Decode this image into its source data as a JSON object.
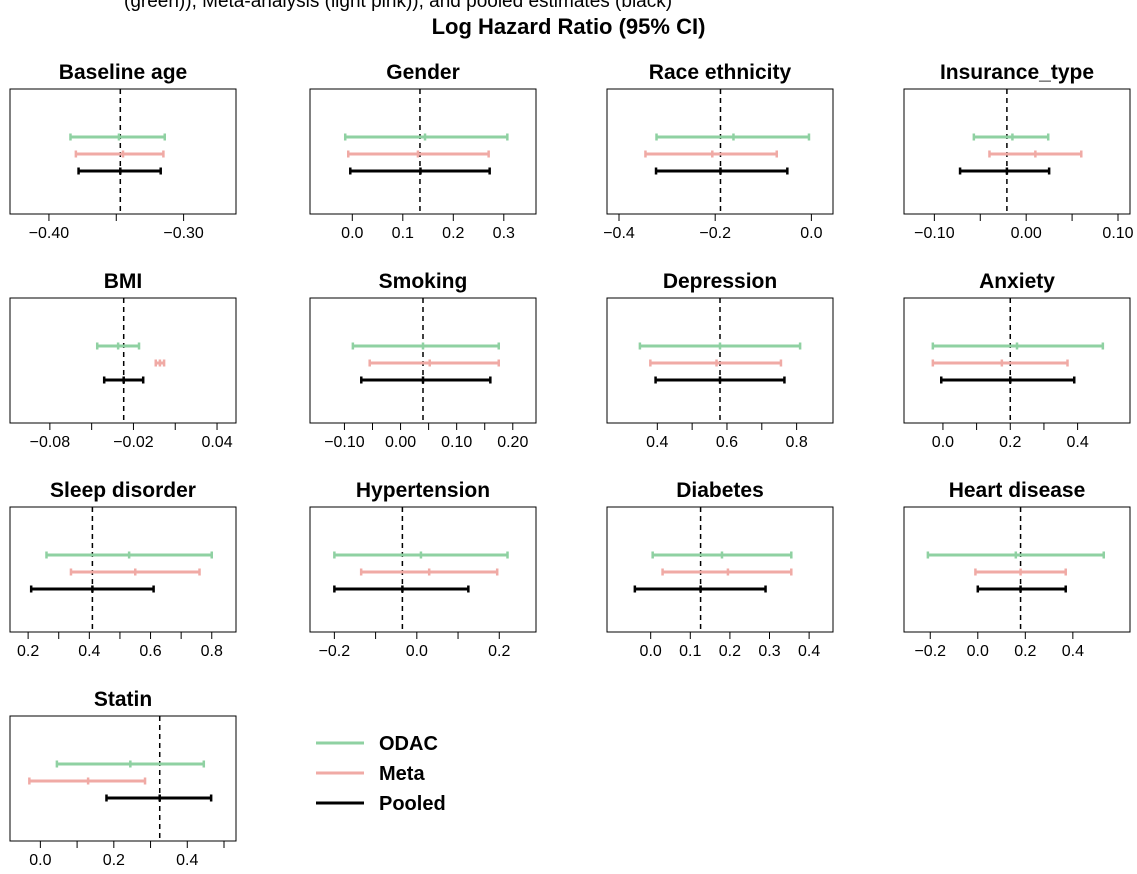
{
  "caption_fragment": "(green)), Meta-analysis (light pink)), and pooled estimates (black)",
  "figure_title": "Log Hazard Ratio (95% CI)",
  "colors": {
    "odac": "#8fd1a2",
    "meta": "#f0aaa5",
    "pooled": "#000000"
  },
  "legend": [
    {
      "label": "ODAC",
      "color": "#8fd1a2"
    },
    {
      "label": "Meta",
      "color": "#f0aaa5"
    },
    {
      "label": "Pooled",
      "color": "#000000"
    }
  ],
  "chart_data": [
    {
      "type": "forest",
      "title": "Baseline age",
      "xlim": [
        -0.42,
        -0.27
      ],
      "ticks": [
        -0.4,
        -0.35,
        -0.3
      ],
      "tick_labels": [
        "−0.40",
        "",
        "−0.30"
      ],
      "ref": -0.347,
      "rows": [
        {
          "series": "ODAC",
          "lo": -0.384,
          "est": -0.348,
          "hi": -0.314
        },
        {
          "series": "Meta",
          "lo": -0.38,
          "est": -0.345,
          "hi": -0.315
        },
        {
          "series": "Pooled",
          "lo": -0.378,
          "est": -0.347,
          "hi": -0.317
        }
      ]
    },
    {
      "type": "forest",
      "title": "Gender",
      "xlim": [
        -0.06,
        0.34
      ],
      "ticks": [
        0,
        0.1,
        0.2,
        0.3
      ],
      "tick_labels": [
        "0.0",
        "0.1",
        "0.2",
        "0.3"
      ],
      "ref": 0.134,
      "rows": [
        {
          "series": "ODAC",
          "lo": -0.014,
          "est": 0.144,
          "hi": 0.307
        },
        {
          "series": "Meta",
          "lo": -0.008,
          "est": 0.13,
          "hi": 0.27
        },
        {
          "series": "Pooled",
          "lo": -0.004,
          "est": 0.135,
          "hi": 0.272
        }
      ]
    },
    {
      "type": "forest",
      "title": "Race ethnicity",
      "xlim": [
        -0.4,
        0.02
      ],
      "ticks": [
        -0.4,
        -0.2,
        0
      ],
      "tick_labels": [
        "−0.4",
        "−0.2",
        "0.0"
      ],
      "ref": -0.189,
      "rows": [
        {
          "series": "ODAC",
          "lo": -0.322,
          "est": -0.162,
          "hi": -0.005
        },
        {
          "series": "Meta",
          "lo": -0.345,
          "est": -0.206,
          "hi": -0.072
        },
        {
          "series": "Pooled",
          "lo": -0.323,
          "est": -0.189,
          "hi": -0.05
        }
      ]
    },
    {
      "type": "forest",
      "title": "Insurance_type",
      "xlim": [
        -0.12,
        0.1
      ],
      "ticks": [
        -0.1,
        -0.05,
        0,
        0.05,
        0.1
      ],
      "tick_labels": [
        "−0.10",
        "",
        "0.00",
        "",
        "0.10"
      ],
      "ref": -0.021,
      "rows": [
        {
          "series": "ODAC",
          "lo": -0.057,
          "est": -0.015,
          "hi": 0.024
        },
        {
          "series": "Meta",
          "lo": -0.04,
          "est": 0.01,
          "hi": 0.06
        },
        {
          "series": "Pooled",
          "lo": -0.072,
          "est": -0.021,
          "hi": 0.025
        }
      ]
    },
    {
      "type": "forest",
      "title": "BMI",
      "xlim": [
        -0.1,
        0.045
      ],
      "ticks": [
        -0.08,
        -0.05,
        -0.02,
        0.01,
        0.04
      ],
      "tick_labels": [
        "−0.08",
        "",
        "−0.02",
        "",
        "0.04"
      ],
      "ref": -0.027,
      "rows": [
        {
          "series": "ODAC",
          "lo": -0.046,
          "est": -0.031,
          "hi": -0.016
        },
        {
          "series": "Meta",
          "lo": -0.004,
          "est": -0.001,
          "hi": 0.002
        },
        {
          "series": "Pooled",
          "lo": -0.041,
          "est": -0.027,
          "hi": -0.013
        }
      ]
    },
    {
      "type": "forest",
      "title": "Smoking",
      "xlim": [
        -0.14,
        0.22
      ],
      "ticks": [
        -0.1,
        -0.05,
        0,
        0.05,
        0.1,
        0.15,
        0.2
      ],
      "tick_labels": [
        "−0.10",
        "",
        "0.00",
        "",
        "0.10",
        "",
        "0.20"
      ],
      "ref": 0.04,
      "rows": [
        {
          "series": "ODAC",
          "lo": -0.085,
          "est": 0.04,
          "hi": 0.175
        },
        {
          "series": "Meta",
          "lo": -0.055,
          "est": 0.052,
          "hi": 0.175
        },
        {
          "series": "Pooled",
          "lo": -0.07,
          "est": 0.04,
          "hi": 0.16
        }
      ]
    },
    {
      "type": "forest",
      "title": "Depression",
      "xlim": [
        0.29,
        0.87
      ],
      "ticks": [
        0.4,
        0.5,
        0.6,
        0.7,
        0.8
      ],
      "tick_labels": [
        "0.4",
        "",
        "0.6",
        "",
        "0.8"
      ],
      "ref": 0.58,
      "rows": [
        {
          "series": "ODAC",
          "lo": 0.35,
          "est": 0.58,
          "hi": 0.81
        },
        {
          "series": "Meta",
          "lo": 0.38,
          "est": 0.57,
          "hi": 0.755
        },
        {
          "series": "Pooled",
          "lo": 0.395,
          "est": 0.58,
          "hi": 0.765
        }
      ]
    },
    {
      "type": "forest",
      "title": "Anxiety",
      "xlim": [
        -0.08,
        0.52
      ],
      "ticks": [
        0,
        0.1,
        0.2,
        0.3,
        0.4
      ],
      "tick_labels": [
        "0.0",
        "",
        "0.2",
        "",
        "0.4"
      ],
      "ref": 0.2,
      "rows": [
        {
          "series": "ODAC",
          "lo": -0.03,
          "est": 0.22,
          "hi": 0.475
        },
        {
          "series": "Meta",
          "lo": -0.03,
          "est": 0.175,
          "hi": 0.37
        },
        {
          "series": "Pooled",
          "lo": -0.005,
          "est": 0.2,
          "hi": 0.39
        }
      ]
    },
    {
      "type": "forest",
      "title": "Sleep disorder",
      "xlim": [
        0.18,
        0.84
      ],
      "ticks": [
        0.2,
        0.3,
        0.4,
        0.5,
        0.6,
        0.7,
        0.8
      ],
      "tick_labels": [
        "0.2",
        "",
        "0.4",
        "",
        "0.6",
        "",
        "0.8"
      ],
      "ref": 0.41,
      "rows": [
        {
          "series": "ODAC",
          "lo": 0.26,
          "est": 0.53,
          "hi": 0.8
        },
        {
          "series": "Meta",
          "lo": 0.34,
          "est": 0.55,
          "hi": 0.76
        },
        {
          "series": "Pooled",
          "lo": 0.21,
          "est": 0.41,
          "hi": 0.61
        }
      ]
    },
    {
      "type": "forest",
      "title": "Hypertension",
      "xlim": [
        -0.23,
        0.26
      ],
      "ticks": [
        -0.2,
        -0.1,
        0,
        0.1,
        0.2
      ],
      "tick_labels": [
        "−0.2",
        "",
        "0.0",
        "",
        "0.2"
      ],
      "ref": -0.035,
      "rows": [
        {
          "series": "ODAC",
          "lo": -0.2,
          "est": 0.01,
          "hi": 0.22
        },
        {
          "series": "Meta",
          "lo": -0.135,
          "est": 0.03,
          "hi": 0.195
        },
        {
          "series": "Pooled",
          "lo": -0.2,
          "est": -0.035,
          "hi": 0.125
        }
      ]
    },
    {
      "type": "forest",
      "title": "Diabetes",
      "xlim": [
        -0.08,
        0.43
      ],
      "ticks": [
        0,
        0.1,
        0.2,
        0.3,
        0.4
      ],
      "tick_labels": [
        "0.0",
        "0.1",
        "0.2",
        "0.3",
        "0.4"
      ],
      "ref": 0.126,
      "rows": [
        {
          "series": "ODAC",
          "lo": 0.005,
          "est": 0.18,
          "hi": 0.355
        },
        {
          "series": "Meta",
          "lo": 0.03,
          "est": 0.195,
          "hi": 0.355
        },
        {
          "series": "Pooled",
          "lo": -0.04,
          "est": 0.126,
          "hi": 0.29
        }
      ]
    },
    {
      "type": "forest",
      "title": "Heart disease",
      "xlim": [
        -0.26,
        0.59
      ],
      "ticks": [
        -0.2,
        0,
        0.2,
        0.4
      ],
      "tick_labels": [
        "−0.2",
        "0.0",
        "0.2",
        "0.4"
      ],
      "ref": 0.18,
      "rows": [
        {
          "series": "ODAC",
          "lo": -0.21,
          "est": 0.16,
          "hi": 0.53
        },
        {
          "series": "Meta",
          "lo": -0.01,
          "est": 0.18,
          "hi": 0.37
        },
        {
          "series": "Pooled",
          "lo": 0.0,
          "est": 0.18,
          "hi": 0.37
        }
      ]
    },
    {
      "type": "forest",
      "title": "Statin",
      "xlim": [
        -0.05,
        0.5
      ],
      "ticks": [
        0,
        0.1,
        0.2,
        0.3,
        0.4,
        0.5
      ],
      "tick_labels": [
        "0.0",
        "",
        "0.2",
        "",
        "0.4",
        ""
      ],
      "ref": 0.325,
      "rows": [
        {
          "series": "ODAC",
          "lo": 0.045,
          "est": 0.245,
          "hi": 0.445
        },
        {
          "series": "Meta",
          "lo": -0.03,
          "est": 0.13,
          "hi": 0.285
        },
        {
          "series": "Pooled",
          "lo": 0.18,
          "est": 0.325,
          "hi": 0.465
        }
      ]
    }
  ]
}
